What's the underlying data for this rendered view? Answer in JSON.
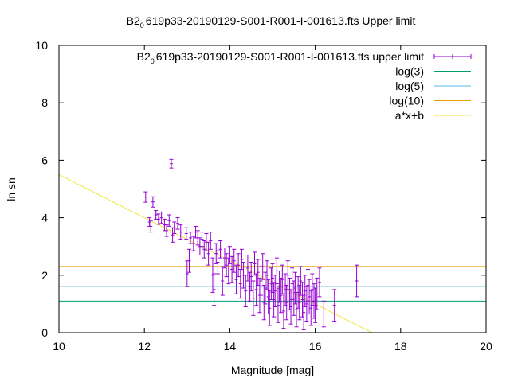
{
  "chart_data": {
    "type": "scatter",
    "title": {
      "prefix": "B2",
      "subscript": "0",
      "suffix": "619p33-20190129-S001-R001-I-001613.fts Upper limit"
    },
    "xlabel": "Magnitude [mag]",
    "ylabel": "ln sn",
    "xlim": [
      10,
      20
    ],
    "ylim": [
      0,
      10
    ],
    "xticks": [
      10,
      12,
      14,
      16,
      18,
      20
    ],
    "yticks": [
      0,
      2,
      4,
      6,
      8,
      10
    ],
    "grid": false,
    "legend_position": "top-right",
    "legend": [
      {
        "prefix": "B2",
        "subscript": "0",
        "suffix": "619p33-20190129-S001-R001-I-001613.fts upper limit",
        "kind": "errorbar",
        "color": "#9400d3"
      },
      {
        "label": "log(3)",
        "kind": "line",
        "color": "#009e73"
      },
      {
        "label": "log(5)",
        "kind": "line",
        "color": "#56b4e9"
      },
      {
        "label": "log(10)",
        "kind": "line",
        "color": "#e69f00"
      },
      {
        "label": "a*x+b",
        "kind": "line",
        "color": "#f0e442"
      }
    ],
    "hlines": [
      {
        "name": "log(3)",
        "y": 1.0986,
        "color": "#009e73"
      },
      {
        "name": "log(5)",
        "y": 1.6094,
        "color": "#56b4e9"
      },
      {
        "name": "log(10)",
        "y": 2.3026,
        "color": "#e69f00"
      }
    ],
    "fit_line": {
      "name": "a*x+b",
      "slope": -0.75,
      "intercept": 13.0,
      "color": "#f0e442"
    },
    "series": {
      "color": "#9400d3",
      "points": [
        [
          12.03,
          4.72,
          0.18
        ],
        [
          12.12,
          3.85,
          0.15
        ],
        [
          12.15,
          3.7,
          0.2
        ],
        [
          12.2,
          4.55,
          0.18
        ],
        [
          12.27,
          4.1,
          0.15
        ],
        [
          12.33,
          3.95,
          0.18
        ],
        [
          12.4,
          4.0,
          0.2
        ],
        [
          12.47,
          3.75,
          0.2
        ],
        [
          12.52,
          3.55,
          0.2
        ],
        [
          12.58,
          3.9,
          0.2
        ],
        [
          12.63,
          5.88,
          0.15
        ],
        [
          12.66,
          3.4,
          0.25
        ],
        [
          12.7,
          3.65,
          0.2
        ],
        [
          12.78,
          3.8,
          0.2
        ],
        [
          12.85,
          3.5,
          0.25
        ],
        [
          12.98,
          3.45,
          0.2
        ],
        [
          13.0,
          2.05,
          0.45
        ],
        [
          13.05,
          2.5,
          0.4
        ],
        [
          13.08,
          3.3,
          0.2
        ],
        [
          13.15,
          3.1,
          0.25
        ],
        [
          13.2,
          3.5,
          0.2
        ],
        [
          13.25,
          3.3,
          0.25
        ],
        [
          13.3,
          3.0,
          0.3
        ],
        [
          13.35,
          3.25,
          0.25
        ],
        [
          13.4,
          2.9,
          0.3
        ],
        [
          13.45,
          3.15,
          0.3
        ],
        [
          13.5,
          2.75,
          0.4
        ],
        [
          13.55,
          3.2,
          0.3
        ],
        [
          13.6,
          2.0,
          0.6
        ],
        [
          13.63,
          1.5,
          0.55
        ],
        [
          13.68,
          2.75,
          0.35
        ],
        [
          13.72,
          2.45,
          0.4
        ],
        [
          13.78,
          2.9,
          0.3
        ],
        [
          13.83,
          1.8,
          0.5
        ],
        [
          13.88,
          2.6,
          0.35
        ],
        [
          13.92,
          2.35,
          0.4
        ],
        [
          13.97,
          2.15,
          0.45
        ],
        [
          14.0,
          2.7,
          0.3
        ],
        [
          14.05,
          2.2,
          0.45
        ],
        [
          14.1,
          2.5,
          0.4
        ],
        [
          14.15,
          1.85,
          0.5
        ],
        [
          14.2,
          2.35,
          0.4
        ],
        [
          14.25,
          1.7,
          0.5
        ],
        [
          14.28,
          2.55,
          0.35
        ],
        [
          14.32,
          2.0,
          0.45
        ],
        [
          14.37,
          1.45,
          0.55
        ],
        [
          14.42,
          2.25,
          0.45
        ],
        [
          14.47,
          1.6,
          0.5
        ],
        [
          14.5,
          1.95,
          0.5
        ],
        [
          14.55,
          1.2,
          0.6
        ],
        [
          14.58,
          2.4,
          0.4
        ],
        [
          14.62,
          1.5,
          0.55
        ],
        [
          14.66,
          2.1,
          0.45
        ],
        [
          14.7,
          1.3,
          0.6
        ],
        [
          14.73,
          1.8,
          0.5
        ],
        [
          14.77,
          2.3,
          0.45
        ],
        [
          14.8,
          1.05,
          0.6
        ],
        [
          14.83,
          1.55,
          0.55
        ],
        [
          14.87,
          2.0,
          0.5
        ],
        [
          14.9,
          1.25,
          0.6
        ],
        [
          14.93,
          0.85,
          0.6
        ],
        [
          14.97,
          1.7,
          0.55
        ],
        [
          15.0,
          1.9,
          0.5
        ],
        [
          15.03,
          1.15,
          0.6
        ],
        [
          15.06,
          1.45,
          0.55
        ],
        [
          15.1,
          2.15,
          0.45
        ],
        [
          15.13,
          0.95,
          0.6
        ],
        [
          15.16,
          1.6,
          0.55
        ],
        [
          15.2,
          1.3,
          0.6
        ],
        [
          15.23,
          1.85,
          0.5
        ],
        [
          15.26,
          0.75,
          0.6
        ],
        [
          15.3,
          1.5,
          0.55
        ],
        [
          15.33,
          1.05,
          0.6
        ],
        [
          15.36,
          2.0,
          0.5
        ],
        [
          15.4,
          1.35,
          0.55
        ],
        [
          15.43,
          0.9,
          0.6
        ],
        [
          15.46,
          1.7,
          0.55
        ],
        [
          15.5,
          1.2,
          0.6
        ],
        [
          15.53,
          1.55,
          0.55
        ],
        [
          15.56,
          0.8,
          0.6
        ],
        [
          15.6,
          1.4,
          0.55
        ],
        [
          15.63,
          1.05,
          0.6
        ],
        [
          15.66,
          1.8,
          0.5
        ],
        [
          15.7,
          1.15,
          0.6
        ],
        [
          15.73,
          0.7,
          0.6
        ],
        [
          15.76,
          1.45,
          0.55
        ],
        [
          15.8,
          1.0,
          0.6
        ],
        [
          15.83,
          1.65,
          0.55
        ],
        [
          15.86,
          1.25,
          0.6
        ],
        [
          15.9,
          0.85,
          0.6
        ],
        [
          15.93,
          1.5,
          0.55
        ],
        [
          15.97,
          1.1,
          0.6
        ],
        [
          16.0,
          0.95,
          0.6
        ],
        [
          16.04,
          1.35,
          0.55
        ],
        [
          16.1,
          1.75,
          0.5
        ],
        [
          16.2,
          0.65,
          0.45
        ],
        [
          16.45,
          0.95,
          0.55
        ],
        [
          16.97,
          1.8,
          0.55
        ]
      ]
    }
  }
}
